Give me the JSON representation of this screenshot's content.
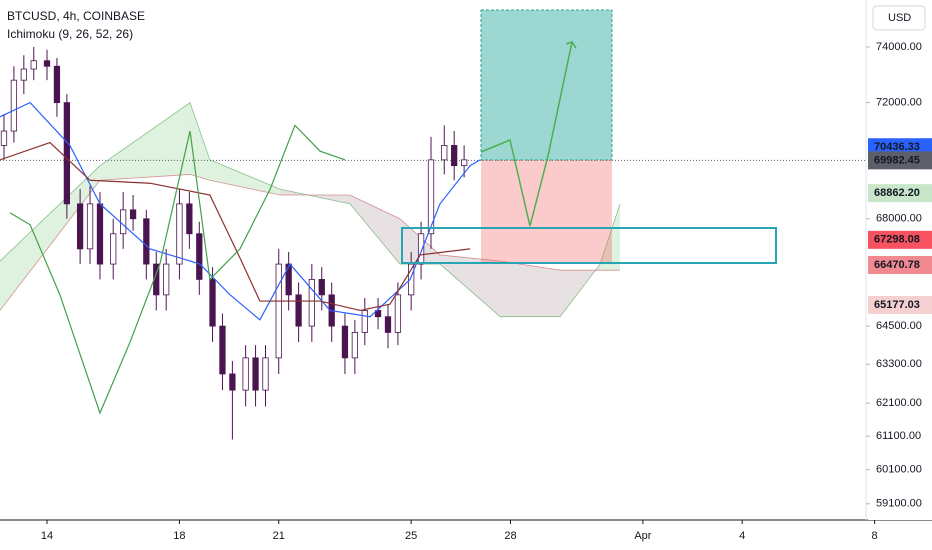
{
  "chart_data": {
    "type": "candlestick",
    "title": "BTCUSD, 4h, COINBASE",
    "subtitle": "Ichimoku (9, 26, 52, 26)",
    "currency_button": "USD",
    "log_scale": true,
    "xlim": [
      12.58,
      38.74
    ],
    "ylim": [
      58630,
      75730
    ],
    "xticks": [
      14,
      18,
      21,
      25,
      28,
      {
        "value": 32,
        "label": "Apr"
      },
      {
        "value": 35,
        "label": "4"
      },
      {
        "value": 39,
        "label": "8"
      }
    ],
    "yticks": [
      {
        "value": 74000,
        "label": "74000.00"
      },
      {
        "value": 72000,
        "label": "72000.00"
      },
      {
        "value": 68000,
        "label": "68000.00"
      },
      {
        "value": 64500,
        "label": "64500.00"
      },
      {
        "value": 63300,
        "label": "63300.00"
      },
      {
        "value": 62100,
        "label": "62100.00"
      },
      {
        "value": 61100,
        "label": "61100.00"
      },
      {
        "value": 60100,
        "label": "60100.00"
      },
      {
        "value": 59100,
        "label": "59100.00"
      }
    ],
    "up_color": "#ffffff",
    "down_color": "#4a1450",
    "candles": {
      "x": [
        12.7,
        13.0,
        13.3,
        13.6,
        14.0,
        14.3,
        14.6,
        15.0,
        15.3,
        15.6,
        16.0,
        16.3,
        16.6,
        17.0,
        17.3,
        17.6,
        18.0,
        18.3,
        18.6,
        19.0,
        19.3,
        19.6,
        20.0,
        20.3,
        20.6,
        21.0,
        21.3,
        21.6,
        22.0,
        22.3,
        22.6,
        23.0,
        23.3,
        23.6,
        24.0,
        24.3,
        24.6,
        25.0,
        25.3,
        25.6,
        26.0,
        26.3,
        26.6
      ],
      "open": [
        70500,
        71000,
        72800,
        73200,
        73500,
        73300,
        72000,
        68500,
        67000,
        68500,
        66500,
        67500,
        68300,
        68000,
        66500,
        65500,
        66500,
        68500,
        67500,
        66000,
        64500,
        63000,
        62500,
        63500,
        62500,
        63500,
        66500,
        65500,
        64500,
        66000,
        65500,
        64500,
        63500,
        64300,
        65000,
        64800,
        64300,
        65500,
        66500,
        67500,
        70000,
        70500,
        69800
      ],
      "close": [
        71000,
        72800,
        73200,
        73500,
        73300,
        72000,
        68500,
        67000,
        68500,
        66500,
        67500,
        68300,
        68000,
        66500,
        65500,
        66500,
        68500,
        67500,
        66000,
        64500,
        63000,
        62500,
        63500,
        62500,
        63500,
        66500,
        65500,
        64500,
        66000,
        65500,
        64500,
        63500,
        64300,
        65000,
        64800,
        64300,
        65500,
        66500,
        67500,
        70000,
        70500,
        69800,
        70000
      ],
      "high": [
        71600,
        73300,
        73700,
        74000,
        73900,
        73600,
        72300,
        69000,
        69100,
        68900,
        68000,
        68900,
        68800,
        68300,
        66900,
        67000,
        69000,
        68900,
        67900,
        66400,
        64900,
        63400,
        63900,
        63900,
        63900,
        67000,
        66900,
        65900,
        66500,
        66400,
        65900,
        64900,
        64700,
        65400,
        65400,
        65200,
        65900,
        66900,
        67900,
        70800,
        71200,
        71000,
        70500
      ],
      "low": [
        70000,
        70600,
        72300,
        72800,
        72800,
        71500,
        68000,
        66500,
        66500,
        66000,
        66000,
        67000,
        67600,
        66000,
        65000,
        65000,
        66000,
        67000,
        65500,
        64000,
        62500,
        61000,
        62000,
        62000,
        62000,
        63000,
        65000,
        64000,
        64000,
        65000,
        64000,
        63000,
        63000,
        63900,
        64400,
        63800,
        63900,
        65000,
        66000,
        67000,
        69500,
        69300,
        69400
      ]
    },
    "lines": [
      {
        "color": "#2962ff",
        "x": [
          12.58,
          13.49,
          14.69,
          15.6,
          17.11,
          18.62,
          19.53,
          20.43,
          21.34,
          22.55,
          23.76,
          24.97,
          25.87,
          26.78,
          27.08
        ],
        "values": [
          71500,
          72000,
          70500,
          68500,
          67000,
          66500,
          65500,
          64700,
          66500,
          65000,
          64800,
          66000,
          68500,
          69800,
          70000
        ]
      },
      {
        "color": "#8b2f2f",
        "x": [
          12.58,
          14.09,
          15.3,
          17.11,
          18.92,
          19.83,
          20.43,
          22.25,
          23.46,
          24.36,
          25.27,
          26.78
        ],
        "values": [
          70000,
          70600,
          69300,
          69200,
          68800,
          66700,
          65300,
          65300,
          65000,
          65200,
          66800,
          67000
        ]
      },
      {
        "color": "#43a047",
        "x": [
          12.88,
          13.49,
          14.39,
          15.6,
          16.51,
          17.41,
          18.32,
          18.92,
          19.83,
          20.74,
          21.49,
          22.25,
          23.0
        ],
        "values": [
          68200,
          67800,
          65500,
          61800,
          64000,
          66500,
          71000,
          66000,
          67000,
          69000,
          71200,
          70300,
          70000
        ]
      }
    ],
    "cloud": {
      "x": [
        12.58,
        15.6,
        18.32,
        18.92,
        21.04,
        23.15,
        24.66,
        25.87,
        27.69,
        29.5,
        30.71,
        31.31
      ],
      "span_a": [
        66600,
        69800,
        72000,
        70000,
        69000,
        68500,
        66500,
        66500,
        64800,
        64800,
        66500,
        68500
      ],
      "span_b": [
        65000,
        69300,
        69500,
        69300,
        68800,
        68800,
        68000,
        66800,
        66600,
        66300,
        66300,
        66300
      ],
      "up_color": "rgba(76,175,80,0.18)",
      "down_color": "rgba(150,120,130,0.22)"
    },
    "last_price": 69982.45,
    "price_badges": [
      {
        "value": 70436.33,
        "label": "70436.33",
        "color": "#2962ff",
        "text_color": "#ffffff"
      },
      {
        "value": 69982.45,
        "label": "69982.45",
        "color": "#5d606b",
        "text_color": "#ffffff"
      },
      {
        "value": 68862.2,
        "label": "68862.20",
        "color": "#c8e6c9",
        "text_color": "#1b1b1b"
      },
      {
        "value": 67298.08,
        "label": "67298.08",
        "color": "#f7525f",
        "text_color": "#1b1b1b"
      },
      {
        "value": 65177.03,
        "label": "65177.03",
        "color": "#f5d0d0",
        "text_color": "#1b1b1b"
      },
      {
        "value": 66470.78,
        "label": "66470.78",
        "color": "#f08a90",
        "text_color": "#1b1b1b"
      }
    ]
  }
}
